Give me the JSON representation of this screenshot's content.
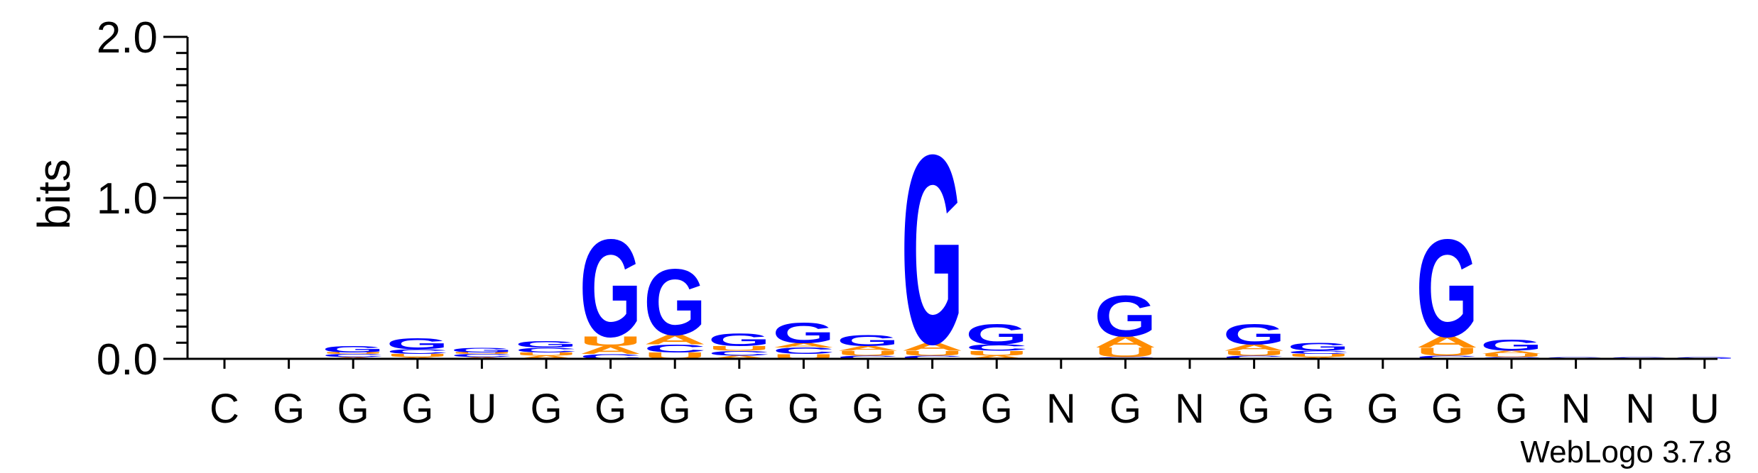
{
  "chart_data": {
    "type": "sequence_logo",
    "ylabel": "bits",
    "ylim": [
      0,
      2.0
    ],
    "yticks": [
      "0.0",
      "1.0",
      "2.0"
    ],
    "x_labels": [
      "C",
      "G",
      "G",
      "G",
      "U",
      "G",
      "G",
      "G",
      "G",
      "G",
      "G",
      "G",
      "G",
      "N",
      "G",
      "N",
      "G",
      "G",
      "G",
      "G",
      "G",
      "N",
      "N",
      "U"
    ],
    "colors": {
      "G": "#0000ff",
      "A": "#ff8c00",
      "U": "#ff8c00",
      "C": "#0000ff"
    },
    "credit": "WebLogo 3.7.8",
    "positions": [
      {
        "label": "C",
        "stack": []
      },
      {
        "label": "G",
        "stack": []
      },
      {
        "label": "G",
        "stack": [
          [
            "A",
            0.01
          ],
          [
            "C",
            0.02
          ],
          [
            "U",
            0.01
          ],
          [
            "G",
            0.04
          ]
        ]
      },
      {
        "label": "G",
        "stack": [
          [
            "A",
            0.01
          ],
          [
            "U",
            0.02
          ],
          [
            "C",
            0.03
          ],
          [
            "G",
            0.07
          ]
        ]
      },
      {
        "label": "U",
        "stack": [
          [
            "A",
            0.01
          ],
          [
            "C",
            0.02
          ],
          [
            "U",
            0.01
          ],
          [
            "G",
            0.03
          ]
        ]
      },
      {
        "label": "G",
        "stack": [
          [
            "A",
            0.02
          ],
          [
            "U",
            0.02
          ],
          [
            "C",
            0.03
          ],
          [
            "G",
            0.04
          ]
        ]
      },
      {
        "label": "G",
        "stack": [
          [
            "C",
            0.03
          ],
          [
            "A",
            0.05
          ],
          [
            "U",
            0.06
          ],
          [
            "G",
            0.62
          ]
        ]
      },
      {
        "label": "G",
        "stack": [
          [
            "U",
            0.04
          ],
          [
            "C",
            0.05
          ],
          [
            "A",
            0.06
          ],
          [
            "G",
            0.42
          ]
        ]
      },
      {
        "label": "G",
        "stack": [
          [
            "A",
            0.02
          ],
          [
            "C",
            0.03
          ],
          [
            "U",
            0.03
          ],
          [
            "G",
            0.08
          ]
        ]
      },
      {
        "label": "G",
        "stack": [
          [
            "U",
            0.03
          ],
          [
            "C",
            0.04
          ],
          [
            "A",
            0.03
          ],
          [
            "G",
            0.13
          ]
        ]
      },
      {
        "label": "G",
        "stack": [
          [
            "C",
            0.02
          ],
          [
            "U",
            0.03
          ],
          [
            "A",
            0.03
          ],
          [
            "G",
            0.07
          ]
        ]
      },
      {
        "label": "G",
        "stack": [
          [
            "C",
            0.02
          ],
          [
            "U",
            0.03
          ],
          [
            "A",
            0.05
          ],
          [
            "G",
            1.2
          ]
        ]
      },
      {
        "label": "G",
        "stack": [
          [
            "A",
            0.02
          ],
          [
            "U",
            0.03
          ],
          [
            "C",
            0.04
          ],
          [
            "G",
            0.13
          ]
        ]
      },
      {
        "label": "N",
        "stack": []
      },
      {
        "label": "G",
        "stack": [
          [
            "C",
            0.01
          ],
          [
            "U",
            0.06
          ],
          [
            "A",
            0.07
          ],
          [
            "G",
            0.26
          ]
        ]
      },
      {
        "label": "N",
        "stack": []
      },
      {
        "label": "G",
        "stack": [
          [
            "C",
            0.02
          ],
          [
            "U",
            0.03
          ],
          [
            "A",
            0.04
          ],
          [
            "G",
            0.13
          ]
        ]
      },
      {
        "label": "G",
        "stack": [
          [
            "A",
            0.01
          ],
          [
            "U",
            0.02
          ],
          [
            "C",
            0.02
          ],
          [
            "G",
            0.05
          ]
        ]
      },
      {
        "label": "G",
        "stack": []
      },
      {
        "label": "G",
        "stack": [
          [
            "C",
            0.02
          ],
          [
            "U",
            0.05
          ],
          [
            "A",
            0.07
          ],
          [
            "G",
            0.62
          ]
        ]
      },
      {
        "label": "G",
        "stack": [
          [
            "C",
            0.01
          ],
          [
            "U",
            0.02
          ],
          [
            "A",
            0.02
          ],
          [
            "G",
            0.07
          ]
        ]
      },
      {
        "label": "N",
        "stack": [
          [
            "G",
            0.01
          ]
        ]
      },
      {
        "label": "N",
        "stack": [
          [
            "G",
            0.01
          ]
        ]
      },
      {
        "label": "U",
        "stack": [
          [
            "G",
            0.01
          ]
        ]
      }
    ]
  }
}
